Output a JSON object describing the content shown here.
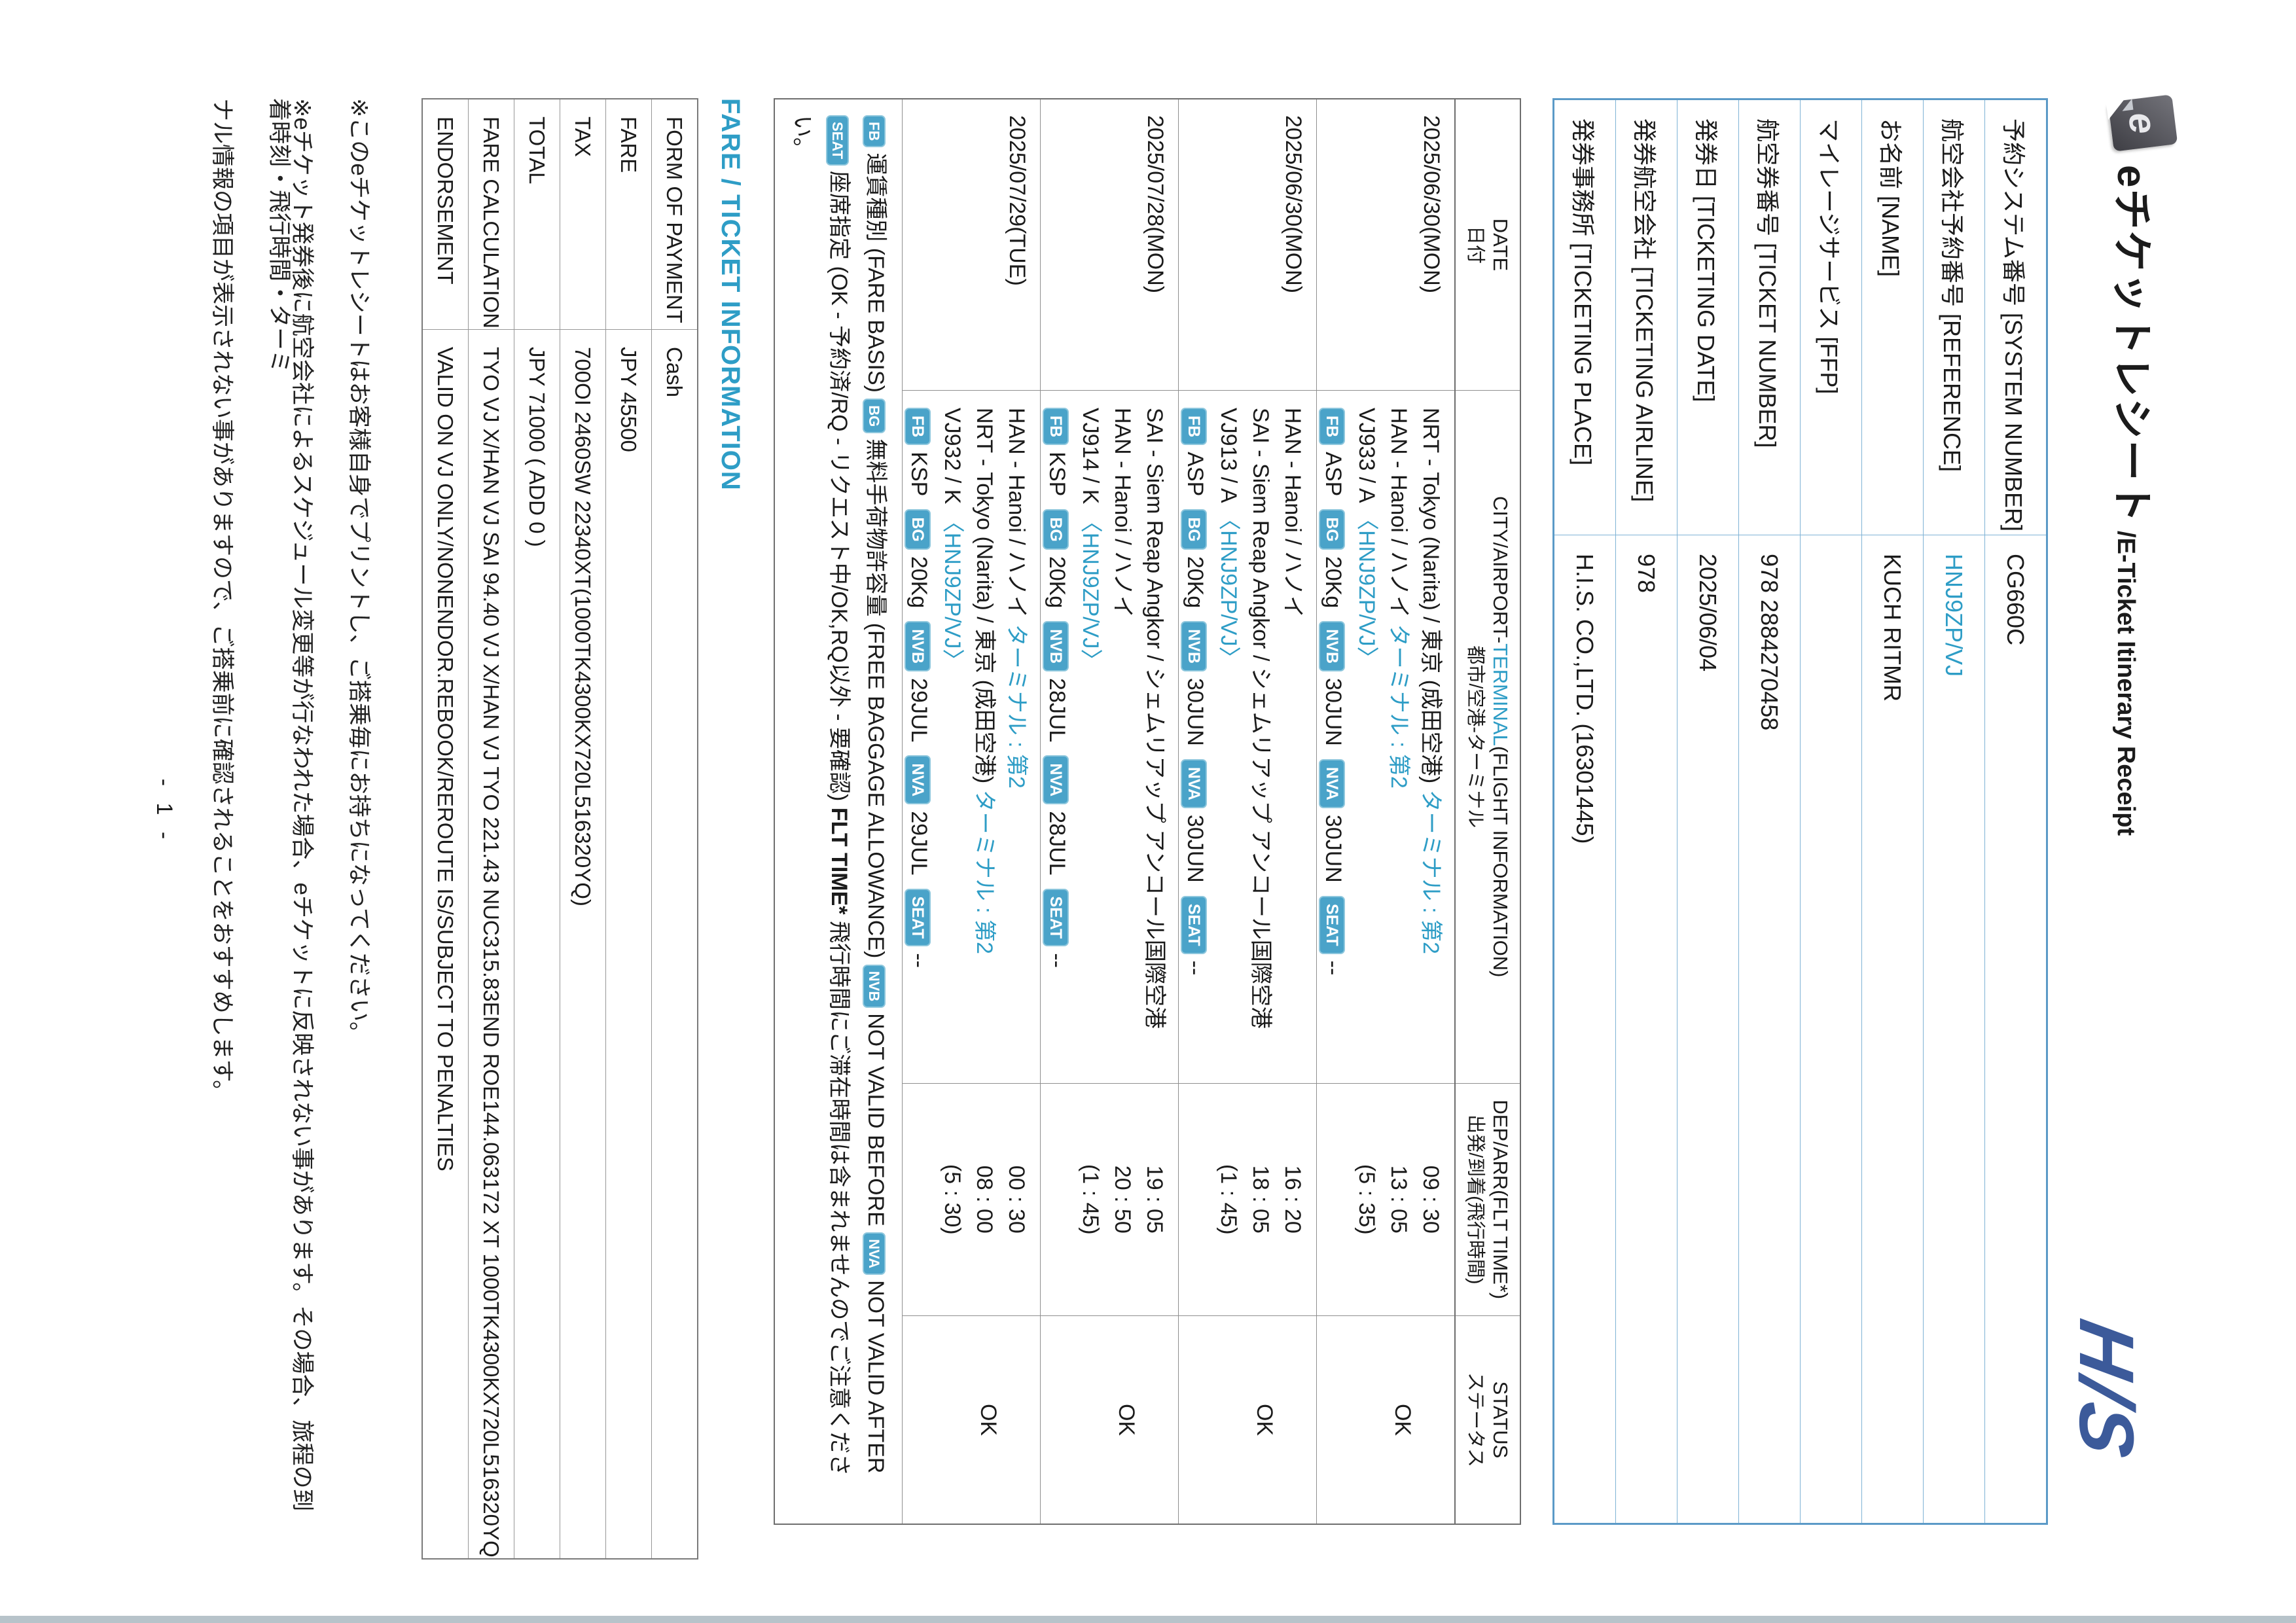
{
  "header": {
    "logo_letter": "e",
    "title": "eチケットレシート",
    "subtitle": " /E-Ticket Itinerary Receipt",
    "brand": "H/S"
  },
  "booking": {
    "rows": [
      {
        "label": "予約システム番号 [SYSTEM NUMBER]",
        "value": "CG660C",
        "accent": false
      },
      {
        "label": "航空会社予約番号 [REFERENCE]",
        "value": "HNJ9ZP/VJ",
        "accent": true
      },
      {
        "label": "お名前 [NAME]",
        "value": "KUCH RITMR",
        "accent": false
      },
      {
        "label": "マイレージサービス [FFP]",
        "value": "",
        "accent": false
      },
      {
        "label": "航空券番号 [TICKET NUMBER]",
        "value": "978 2884270458",
        "accent": false
      },
      {
        "label": "発券日 [TICKETING DATE]",
        "value": "2025/06/04",
        "accent": false
      },
      {
        "label": "発券航空会社 [TICKETING AIRLINE]",
        "value": "978",
        "accent": false
      },
      {
        "label": "発券事務所 [TICKETING PLACE]",
        "value": "H.I.S. CO.,LTD. (16301445)",
        "accent": false
      }
    ]
  },
  "flight_table": {
    "headers": {
      "date": {
        "en": "DATE",
        "jp": "日付"
      },
      "city": {
        "pre": "CITY/AIRPORT-",
        "highlight": "TERMINAL",
        "post": "(FLIGHT INFORMATION)",
        "jp": "都市/空港-ターミナル"
      },
      "dep": {
        "en": "DEP/ARR(FLT TIME*)",
        "jp": "出発/到着(飛行時間)"
      },
      "status": {
        "en": "STATUS",
        "jp": "ステータス"
      }
    },
    "rows": [
      {
        "date": "2025/06/30(MON)",
        "dep": {
          "city": "NRT - Tokyo (Narita) / 東京 (成田空港)",
          "terminal": "ターミナル : 第2"
        },
        "arr": {
          "city": "HAN - Hanoi / ハノイ",
          "terminal": "ターミナル : 第2"
        },
        "flight": "VJ933 / A",
        "ref": "〈HNJ9ZP/VJ〉",
        "badges": [
          {
            "tag": "FB",
            "value": "ASP"
          },
          {
            "tag": "BG",
            "value": "20Kg"
          },
          {
            "tag": "NVB",
            "value": "30JUN"
          },
          {
            "tag": "NVA",
            "value": "30JUN"
          },
          {
            "tag": "SEAT",
            "value": "--"
          }
        ],
        "times": [
          "09 : 30",
          "13 : 05",
          "(5 : 35)"
        ],
        "status": "OK"
      },
      {
        "date": "2025/06/30(MON)",
        "dep": {
          "city": "HAN - Hanoi / ハノイ",
          "terminal": ""
        },
        "arr": {
          "city": "SAI - Siem Reap Angkor / シェムリアップ アンコール国際空港",
          "terminal": ""
        },
        "flight": "VJ913 / A",
        "ref": "〈HNJ9ZP/VJ〉",
        "badges": [
          {
            "tag": "FB",
            "value": "ASP"
          },
          {
            "tag": "BG",
            "value": "20Kg"
          },
          {
            "tag": "NVB",
            "value": "30JUN"
          },
          {
            "tag": "NVA",
            "value": "30JUN"
          },
          {
            "tag": "SEAT",
            "value": "--"
          }
        ],
        "times": [
          "16 : 20",
          "18 : 05",
          "(1 : 45)"
        ],
        "status": "OK"
      },
      {
        "date": "2025/07/28(MON)",
        "dep": {
          "city": "SAI - Siem Reap Angkor / シェムリアップ アンコール国際空港",
          "terminal": ""
        },
        "arr": {
          "city": "HAN - Hanoi / ハノイ",
          "terminal": ""
        },
        "flight": "VJ914 / K",
        "ref": "〈HNJ9ZP/VJ〉",
        "badges": [
          {
            "tag": "FB",
            "value": "KSP"
          },
          {
            "tag": "BG",
            "value": "20Kg"
          },
          {
            "tag": "NVB",
            "value": "28JUL"
          },
          {
            "tag": "NVA",
            "value": "28JUL"
          },
          {
            "tag": "SEAT",
            "value": "--"
          }
        ],
        "times": [
          "19 : 05",
          "20 : 50",
          "(1 : 45)"
        ],
        "status": "OK"
      },
      {
        "date": "2025/07/29(TUE)",
        "dep": {
          "city": "HAN - Hanoi / ハノイ",
          "terminal": "ターミナル : 第2"
        },
        "arr": {
          "city": "NRT - Tokyo (Narita) / 東京 (成田空港)",
          "terminal": "ターミナル : 第2"
        },
        "flight": "VJ932 / K",
        "ref": "〈HNJ9ZP/VJ〉",
        "badges": [
          {
            "tag": "FB",
            "value": "KSP"
          },
          {
            "tag": "BG",
            "value": "20Kg"
          },
          {
            "tag": "NVB",
            "value": "29JUL"
          },
          {
            "tag": "NVA",
            "value": "29JUL"
          },
          {
            "tag": "SEAT",
            "value": "--"
          }
        ],
        "times": [
          "00 : 30",
          "08 : 00",
          "(5 : 30)"
        ],
        "status": "OK"
      }
    ]
  },
  "legend": {
    "line1": [
      {
        "badge": "FB"
      },
      {
        "text": "運賃種別 (FARE BASIS)"
      },
      {
        "badge": "BG"
      },
      {
        "text": "無料手荷物許容量 (FREE BAGGAGE ALLOWANCE)"
      },
      {
        "badge": "NVB"
      },
      {
        "text": "NOT VALID BEFORE"
      },
      {
        "badge": "NVA"
      },
      {
        "text": "NOT VALID AFTER"
      }
    ],
    "line2": [
      {
        "badge": "SEAT"
      },
      {
        "text": "座席指定 (OK - 予約済/RQ - リクエスト中/OK,RQ以外 - 要確認)"
      },
      {
        "text_bold": "FLT TIME*"
      },
      {
        "text": "飛行時間にご滞在時間は含まれませんのでご注意ください。"
      }
    ]
  },
  "fare_section": {
    "heading": "FARE / TICKET INFORMATION",
    "rows": [
      {
        "label": "FORM OF PAYMENT",
        "value": "Cash"
      },
      {
        "label": "FARE",
        "value": "JPY 45500"
      },
      {
        "label": "TAX",
        "value": "700OI 2460SW 22340XT(1000TK4300KX720L516320YQ)"
      },
      {
        "label": "TOTAL",
        "value": "JPY 71000 ( ADD  0  )"
      },
      {
        "label": "FARE CALCULATION",
        "value": "TYO VJ X/HAN VJ SAI 94.40 VJ X/HAN VJ TYO 221.43 NUC315.83END ROE144.063172 XT 1000TK4300KX720L516320YQ"
      },
      {
        "label": "ENDORSEMENT",
        "value": "VALID ON VJ ONLY/NONENDOR.REBOOK/REROUTE IS/SUBJECT TO PENALTIES"
      }
    ]
  },
  "footnotes": [
    "※このeチケットレシートはお客様自身でプリントし、ご搭乗毎にお持ちになってください。",
    "※eチケット発券後に航空会社によるスケジュール変更等が行なわれた場合、eチケットに反映されない事があります。その場合、旅程の到着時刻・飛行時間・ターミ",
    "ナル情報の項目が表示されない事がありますので、ご搭乗前に確認されることをおすすめします。"
  ],
  "page_number": "- 1 -",
  "colors": {
    "accent_teal": "#2e9dc6",
    "badge_bg": "#4aa3c9",
    "booking_border": "#7fb3d6",
    "table_border": "#8f8f8f",
    "his_blue": "#3c5a9a"
  }
}
